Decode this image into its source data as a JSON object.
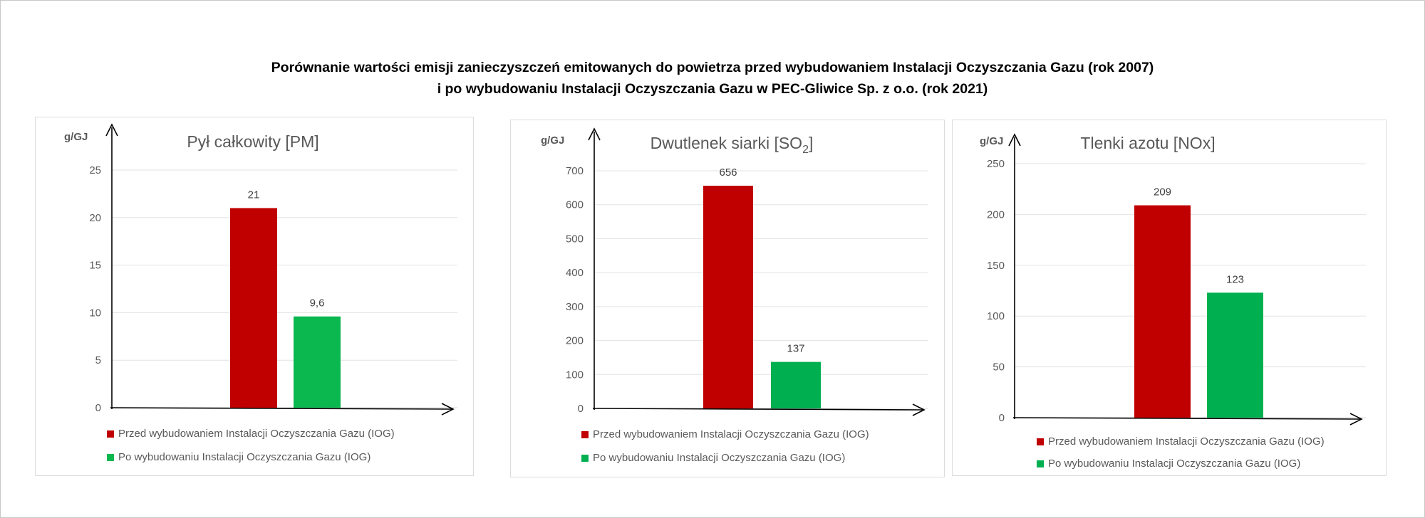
{
  "page": {
    "title_line1": "Porównanie wartości emisji zanieczyszczeń emitowanych do powietrza przed wybudowaniem Instalacji Oczyszczania Gazu (rok 2007)",
    "title_line2": "i po wybudowaniu Instalacji Oczyszczania Gazu w PEC-Gliwice Sp. z o.o. (rok 2021)"
  },
  "legend": {
    "before_label": "Przed wybudowaniem Instalacji Oczyszczania Gazu (IOG)",
    "after_label": "Po wybudowaniu Instalacji Oczyszczania Gazu (IOG)",
    "before_color": "#c00000",
    "after_color_pm": "#0ab84f",
    "after_color": "#00b050"
  },
  "chart_data": [
    {
      "type": "bar",
      "title": "Pył całkowity [PM]",
      "ylabel": "g/GJ",
      "ylim": [
        0,
        25
      ],
      "yticks": [
        "0",
        "5",
        "10",
        "15",
        "20",
        "25"
      ],
      "grid": true,
      "legend_position": "bottom",
      "series": [
        {
          "name": "Przed wybudowaniem Instalacji Oczyszczania Gazu (IOG)",
          "value": 21,
          "label": "21"
        },
        {
          "name": "Po wybudowaniu Instalacji Oczyszczania Gazu (IOG)",
          "value": 9.6,
          "label": "9,6"
        }
      ]
    },
    {
      "type": "bar",
      "title": "Dwutlenek siarki [SO",
      "title_sub": "2",
      "title_end": "]",
      "ylabel": "g/GJ",
      "ylim": [
        0,
        700
      ],
      "yticks": [
        "0",
        "100",
        "200",
        "300",
        "400",
        "500",
        "600",
        "700"
      ],
      "grid": true,
      "legend_position": "bottom",
      "series": [
        {
          "name": "Przed wybudowaniem Instalacji Oczyszczania Gazu (IOG)",
          "value": 656,
          "label": "656"
        },
        {
          "name": "Po wybudowaniu Instalacji Oczyszczania Gazu (IOG)",
          "value": 137,
          "label": "137"
        }
      ]
    },
    {
      "type": "bar",
      "title": "Tlenki azotu [NOx]",
      "ylabel": "g/GJ",
      "ylim": [
        0,
        250
      ],
      "yticks": [
        "0",
        "50",
        "100",
        "150",
        "200",
        "250"
      ],
      "grid": true,
      "legend_position": "bottom",
      "series": [
        {
          "name": "Przed wybudowaniem Instalacji Oczyszczania Gazu (IOG)",
          "value": 209,
          "label": "209"
        },
        {
          "name": "Po wybudowaniu Instalacji Oczyszczania Gazu (IOG)",
          "value": 123,
          "label": "123"
        }
      ]
    }
  ]
}
